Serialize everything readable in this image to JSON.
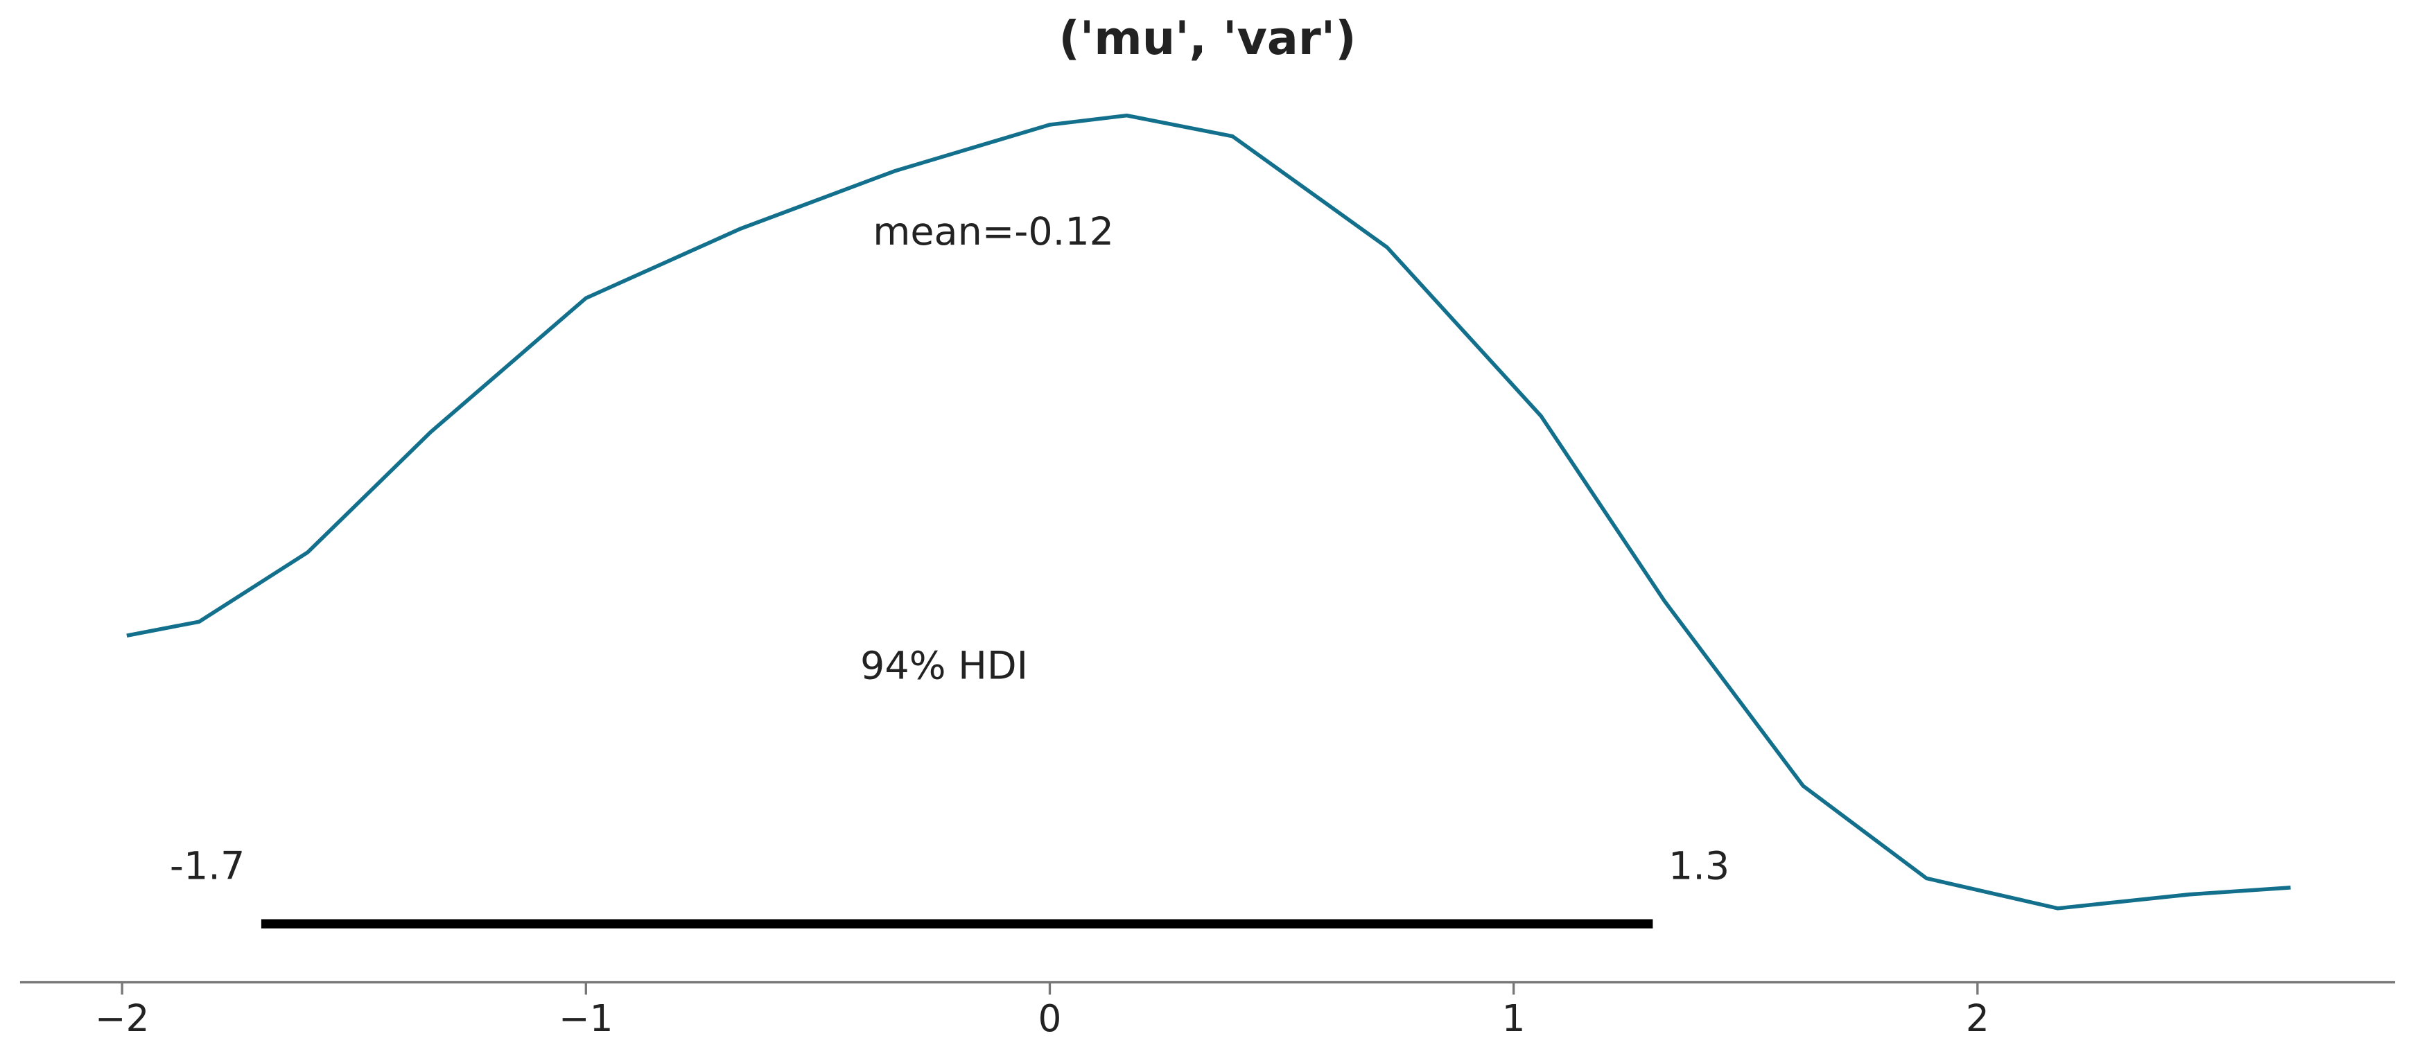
{
  "chart_data": {
    "type": "density",
    "title": "('mu', 'var')",
    "x": [
      -1.99,
      -1.834,
      -1.6,
      -1.335,
      -1.0,
      -0.667,
      -0.334,
      0.0,
      0.166,
      0.394,
      0.727,
      1.059,
      1.325,
      1.624,
      1.89,
      2.173,
      2.456,
      2.675
    ],
    "values": [
      0.125,
      0.131,
      0.161,
      0.213,
      0.271,
      0.301,
      0.326,
      0.346,
      0.35,
      0.341,
      0.293,
      0.22,
      0.14,
      0.06,
      0.02,
      0.007,
      0.013,
      0.016
    ],
    "color": "#13708d",
    "mean_label": "mean=-0.12",
    "hdi_label": "94% HDI",
    "hdi": [
      -1.7,
      1.3
    ],
    "xlim": [
      -2.22,
      2.9
    ],
    "ylim": [
      -0.025,
      0.36
    ],
    "xticks": [
      {
        "value": -2,
        "label": "−2"
      },
      {
        "value": -1,
        "label": "−1"
      },
      0,
      1,
      2
    ]
  }
}
